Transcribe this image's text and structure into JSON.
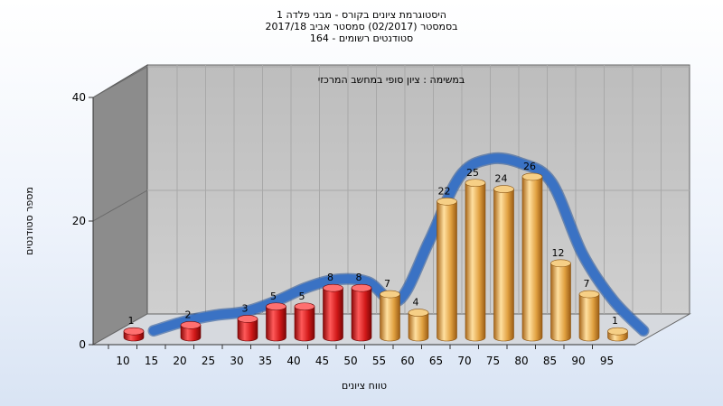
{
  "title_lines": [
    "היסטוגרמת ציונים בקורס - מבני פלדה 1",
    "בסמסטר  (02/2017)  סמסטר אביב 2017/18",
    "סטודנטים רשומים - 164"
  ],
  "colors": {
    "bar_fail": "#d01818",
    "bar_pass": "#e0a040",
    "curve": "#3a72c4",
    "back_wall": "#c4c4c4",
    "side_wall": "#8a8a8a",
    "floor": "#d4d8de"
  },
  "chart_data": {
    "type": "bar",
    "title": "היסטוגרמת ציונים בקורס - מבני פלדה 1",
    "subtitle": "בסמסטר  (02/2017)  סמסטר אביב 2017/18 / סטודנטים רשומים - 164",
    "annotation": "במשימה : ציון סופי במחשב המרכזי",
    "xlabel": "טווח ציונים",
    "ylabel": "מספר סטודנטים",
    "xticks": [
      "10",
      "15",
      "20",
      "25",
      "30",
      "35",
      "40",
      "45",
      "50",
      "55",
      "60",
      "65",
      "70",
      "75",
      "80",
      "85",
      "90",
      "95"
    ],
    "yticks": [
      0,
      20,
      40
    ],
    "ylim": [
      0,
      40
    ],
    "categories": [
      "10",
      "20",
      "30",
      "35",
      "40",
      "45",
      "50",
      "55",
      "60",
      "65",
      "70",
      "75",
      "80",
      "85",
      "90",
      "95"
    ],
    "values": [
      1,
      2,
      3,
      5,
      5,
      8,
      8,
      7,
      4,
      22,
      25,
      24,
      26,
      12,
      7,
      1
    ],
    "fail_threshold": 55,
    "curve_y": [
      0.5,
      2.0,
      3.0,
      3.6,
      5.3,
      7.5,
      8.8,
      8.4,
      5.4,
      15.0,
      25.5,
      28.3,
      27.6,
      24.5,
      13.0,
      5.5,
      0.5
    ],
    "grid": true,
    "legend": "none"
  }
}
